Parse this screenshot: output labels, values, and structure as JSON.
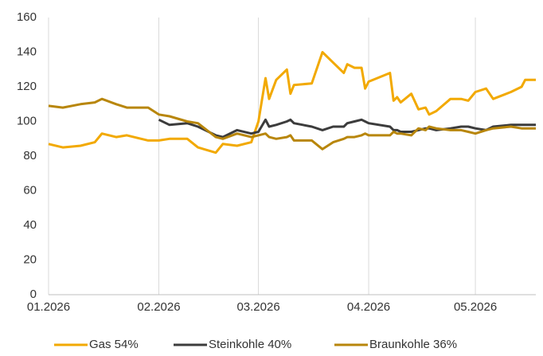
{
  "chart_data": {
    "type": "line",
    "x": [
      0,
      4,
      9,
      13,
      15,
      19,
      22,
      28,
      31,
      34,
      39,
      42,
      47,
      49,
      53,
      57,
      59,
      61,
      62,
      64,
      67,
      68,
      69,
      74,
      77,
      80,
      83,
      84,
      86,
      88,
      89,
      90,
      96,
      97,
      98,
      99,
      102,
      104,
      106,
      107,
      109,
      113,
      116,
      118,
      120,
      123,
      125,
      130,
      133,
      134,
      137
    ],
    "series": [
      {
        "name": "Gas 54%",
        "color": "#f2a900",
        "values": [
          87,
          85,
          86,
          88,
          93,
          91,
          92,
          89,
          89,
          90,
          90,
          85,
          82,
          87,
          86,
          88,
          100,
          125,
          113,
          124,
          130,
          116,
          121,
          122,
          140,
          134,
          128,
          133,
          131,
          131,
          119,
          123,
          128,
          112,
          114,
          111,
          116,
          107,
          108,
          104,
          106,
          113,
          113,
          112,
          117,
          119,
          113,
          117,
          120,
          124,
          124
        ]
      },
      {
        "name": "Steinkohle 40%",
        "color": "#3c3c3c",
        "values": [
          null,
          null,
          null,
          null,
          null,
          null,
          null,
          null,
          101,
          98,
          99,
          97,
          92,
          91,
          95,
          93,
          94,
          101,
          97,
          98,
          100,
          101,
          99,
          97,
          95,
          97,
          97,
          99,
          100,
          101,
          100,
          99,
          97,
          95,
          95,
          94,
          94,
          95,
          96,
          96,
          95,
          96,
          97,
          97,
          96,
          95,
          97,
          98,
          98,
          98,
          98
        ]
      },
      {
        "name": "Braunkohle 36%",
        "color": "#b8860b",
        "values": [
          109,
          108,
          110,
          111,
          113,
          110,
          108,
          108,
          104,
          103,
          100,
          99,
          91,
          90,
          93,
          91,
          92,
          93,
          91,
          90,
          91,
          92,
          89,
          89,
          84,
          88,
          90,
          91,
          91,
          92,
          93,
          92,
          92,
          94,
          93,
          93,
          92,
          96,
          95,
          97,
          96,
          95,
          95,
          94,
          93,
          95,
          96,
          97,
          96,
          96,
          96
        ]
      }
    ],
    "xlim": [
      0,
      137
    ],
    "xticks": [
      {
        "value": 0,
        "label": "01.2026"
      },
      {
        "value": 31,
        "label": "02.2026"
      },
      {
        "value": 59,
        "label": "03.2026"
      },
      {
        "value": 90,
        "label": "04.2026"
      },
      {
        "value": 120,
        "label": "05.2026"
      }
    ],
    "ylim": [
      0,
      160
    ],
    "yticks": [
      0,
      20,
      40,
      60,
      80,
      100,
      120,
      140,
      160
    ],
    "grid": "x",
    "legend": "bottom"
  }
}
